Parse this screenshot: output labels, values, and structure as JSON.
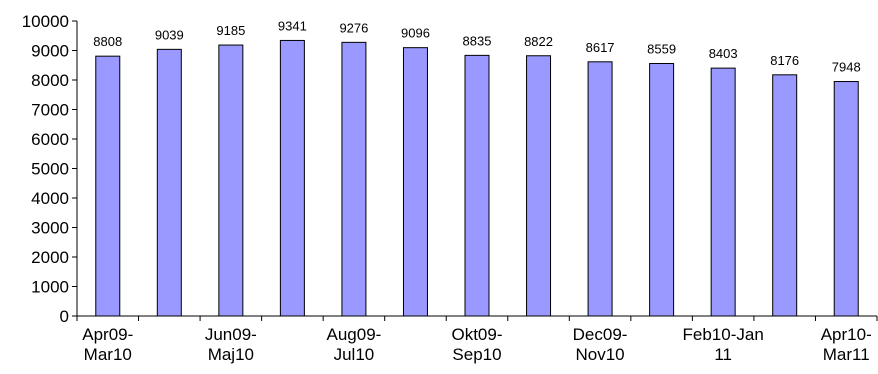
{
  "chart_data": {
    "type": "bar",
    "categories": [
      [
        "Apr09-",
        "Mar10"
      ],
      [],
      [
        "Jun09-",
        "Maj10"
      ],
      [],
      [
        "Aug09-",
        "Jul10"
      ],
      [],
      [
        "Okt09-",
        "Sep10"
      ],
      [],
      [
        "Dec09-",
        "Nov10"
      ],
      [],
      [
        "Feb10-Jan",
        "11"
      ],
      [],
      [
        "Apr10-",
        "Mar11"
      ]
    ],
    "values": [
      8808,
      9039,
      9185,
      9341,
      9276,
      9096,
      8835,
      8822,
      8617,
      8559,
      8403,
      8176,
      7948
    ],
    "data_labels": [
      "8808",
      "9039",
      "9185",
      "9341",
      "9276",
      "9096",
      "8835",
      "8822",
      "8617",
      "8559",
      "8403",
      "8176",
      "7948"
    ],
    "y_ticks": [
      "0",
      "1000",
      "2000",
      "3000",
      "4000",
      "5000",
      "6000",
      "7000",
      "8000",
      "9000",
      "10000"
    ],
    "ylim": [
      0,
      10000
    ],
    "grid": false,
    "legend": "none",
    "title": "",
    "xlabel": "",
    "ylabel": "",
    "colors": {
      "bar_fill": "#9999ff",
      "bar_stroke": "#000000",
      "axis": "#000000"
    }
  }
}
